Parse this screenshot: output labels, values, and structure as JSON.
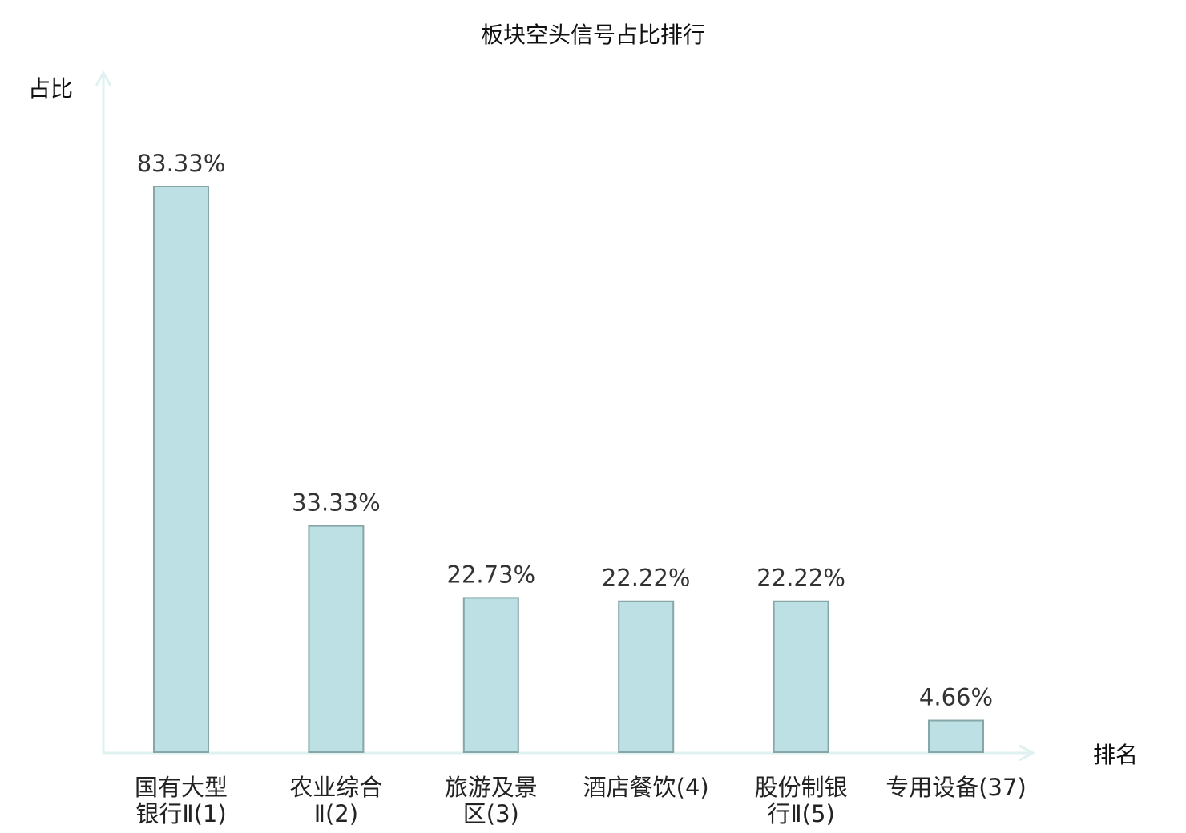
{
  "chart_data": {
    "type": "bar",
    "title": "板块空头信号占比排行",
    "ylabel": "占比",
    "xlabel": "排名",
    "categories": [
      [
        "国有大型",
        "银行Ⅱ(1)"
      ],
      [
        "农业综合",
        "Ⅱ(2)"
      ],
      [
        "旅游及景",
        "区(3)"
      ],
      [
        "酒店餐饮(4)"
      ],
      [
        "股份制银",
        "行Ⅱ(5)"
      ],
      [
        "专用设备(37)"
      ]
    ],
    "values": [
      83.33,
      33.33,
      22.73,
      22.22,
      22.22,
      4.66
    ],
    "value_labels": [
      "83.33%",
      "33.33%",
      "22.73%",
      "22.22%",
      "22.22%",
      "4.66%"
    ],
    "highlight_index": 5,
    "ylim": [
      0,
      100
    ],
    "grid": false,
    "colors": {
      "bar_fill": "#bce0e3",
      "bar_stroke": "#86a6a8",
      "axis": "#dff2f0",
      "highlight_text": "#e8141b",
      "text": "#222222"
    }
  }
}
